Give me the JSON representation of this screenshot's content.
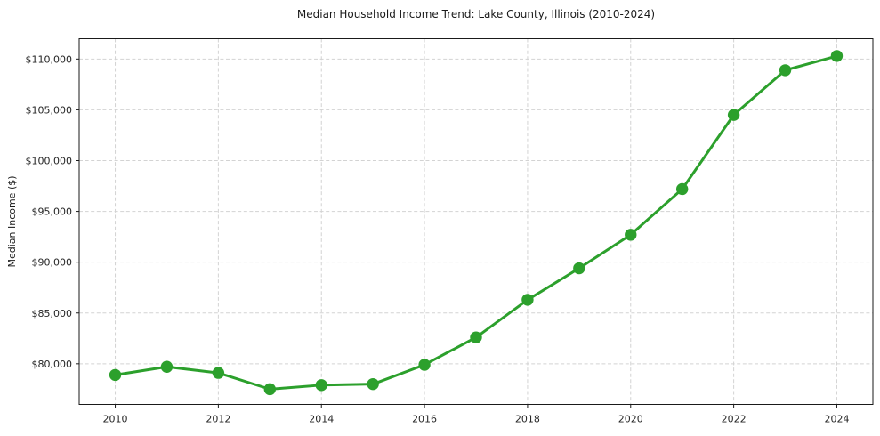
{
  "chart_data": {
    "type": "line",
    "title": "Median Household Income Trend: Lake County, Illinois (2010-2024)",
    "xlabel": "",
    "ylabel": "Median Income ($)",
    "x": [
      2010,
      2011,
      2012,
      2013,
      2014,
      2015,
      2016,
      2017,
      2018,
      2019,
      2020,
      2021,
      2022,
      2023,
      2024
    ],
    "series": [
      {
        "name": "Median Household Income",
        "values": [
          78900,
          79700,
          79100,
          77500,
          77900,
          78000,
          79900,
          82600,
          86300,
          89400,
          92700,
          97200,
          104500,
          108900,
          110300
        ]
      }
    ],
    "x_ticks": [
      2010,
      2012,
      2014,
      2016,
      2018,
      2020,
      2022,
      2024
    ],
    "y_ticks": [
      80000,
      85000,
      90000,
      95000,
      100000,
      105000,
      110000
    ],
    "y_tick_labels": [
      "$80,000",
      "$85,000",
      "$90,000",
      "$95,000",
      "$100,000",
      "$105,000",
      "$110,000"
    ],
    "xlim": [
      2009.3,
      2024.7
    ],
    "ylim": [
      76000,
      112000
    ],
    "grid": true,
    "grid_style": "dashed",
    "legend": "none",
    "line_color": "#2ca02c",
    "marker": "circle",
    "marker_color": "#2ca02c",
    "background": "#ffffff"
  }
}
